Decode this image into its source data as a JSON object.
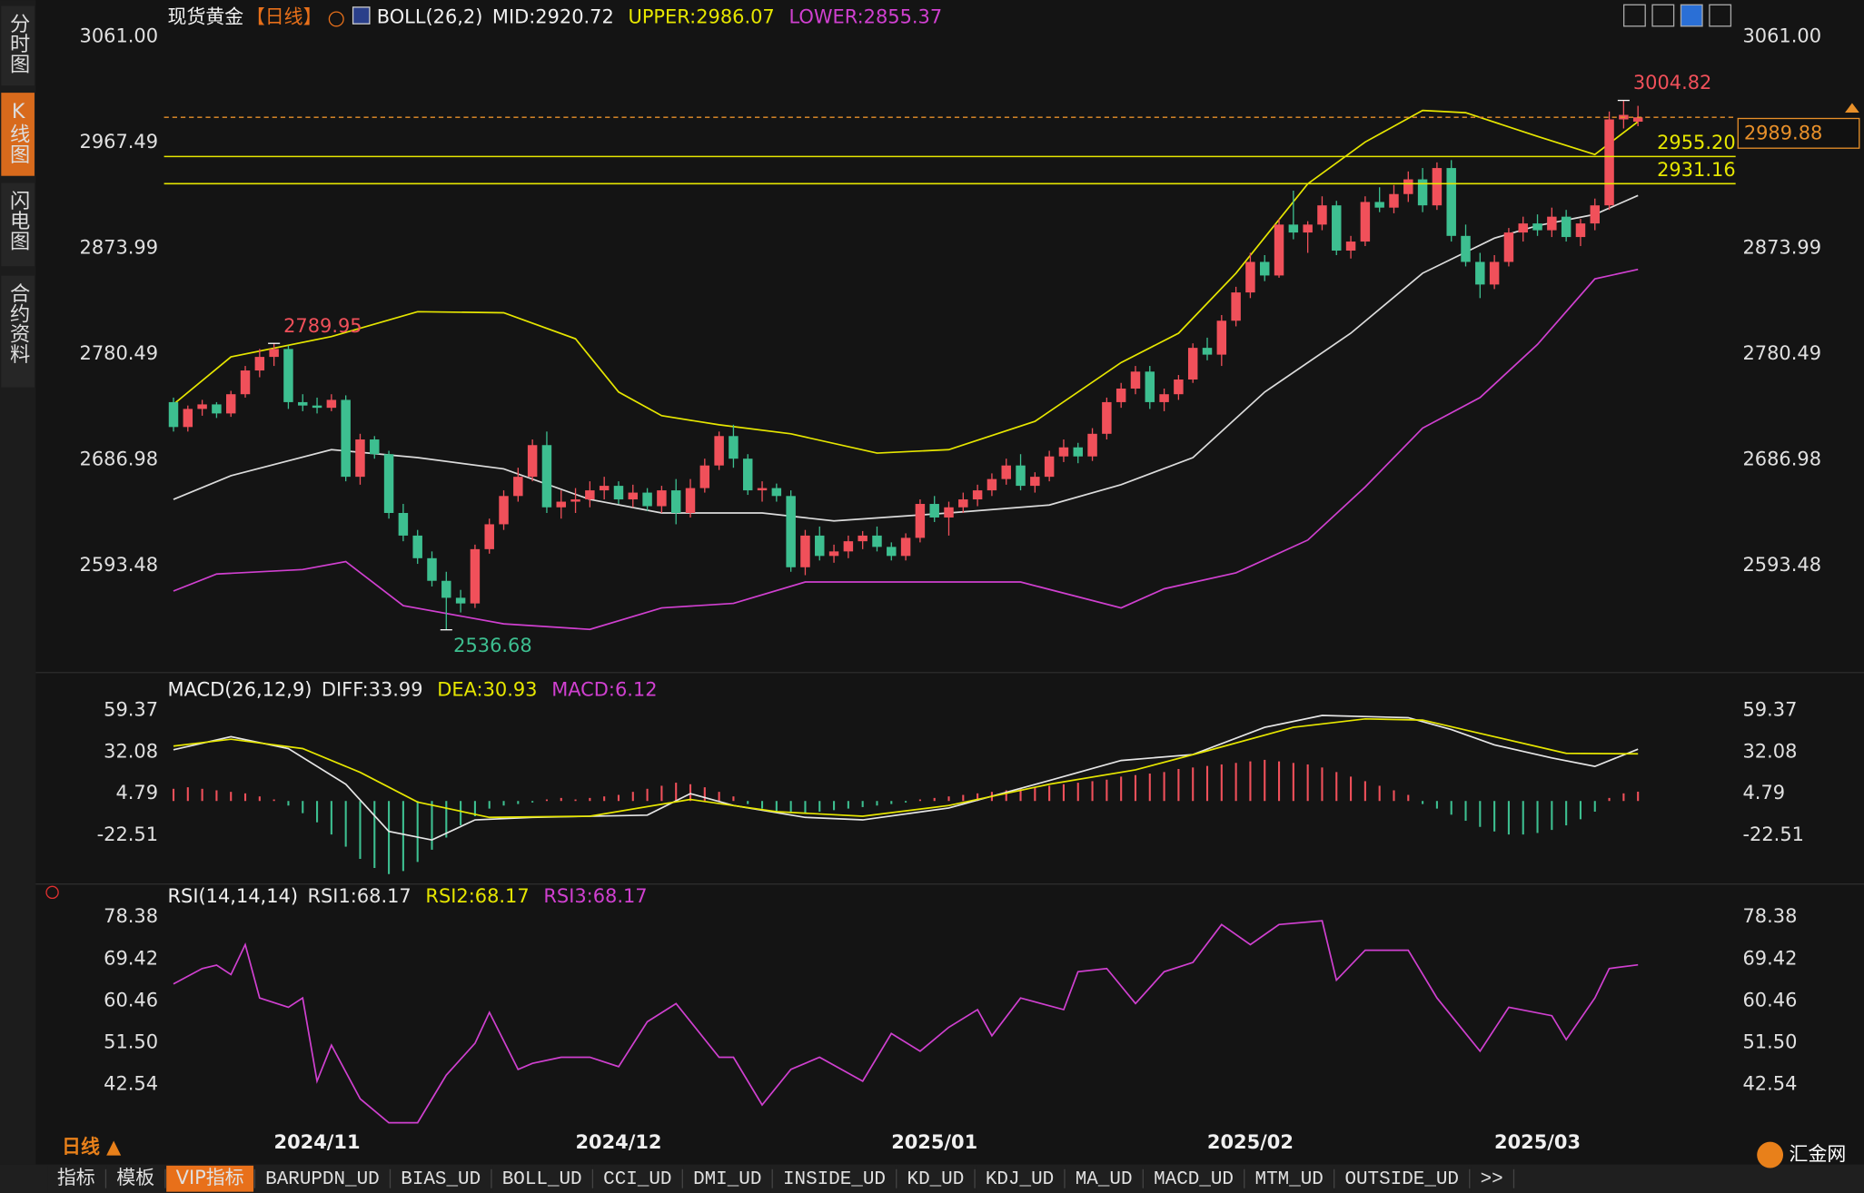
{
  "header": {
    "symbol": "现货黄金",
    "period": "【日线】"
  },
  "sidebar": [
    "分时图",
    "K线图",
    "闪电图",
    "合约资料"
  ],
  "period_selector": "日线 ▲",
  "bottom_tabs": [
    "指标",
    "模板",
    "VIP指标",
    "BARUPDN_UD",
    "BIAS_UD",
    "BOLL_UD",
    "CCI_UD",
    "DMI_UD",
    "INSIDE_UD",
    "KD_UD",
    "KDJ_UD",
    "MA_UD",
    "MACD_UD",
    "MTM_UD",
    "OUTSIDE_UD",
    ">>"
  ],
  "logo": "汇金网",
  "chart_data": [
    {
      "type": "candlestick",
      "indicator": "BOLL(26,2)",
      "up_color": "#f0505a",
      "down_color": "#3dbf90",
      "grid": false,
      "xlim": [
        -9.6,
        108.8
      ],
      "xticks": [
        {
          "value": 10,
          "label": "2024/11"
        },
        {
          "value": 31,
          "label": "2024/12"
        },
        {
          "value": 53,
          "label": "2025/01"
        },
        {
          "value": 75,
          "label": "2025/02"
        },
        {
          "value": 95,
          "label": "2025/03"
        }
      ],
      "ylim": [
        2505.2,
        3088.3
      ],
      "yticks": [
        2593.48,
        2686.98,
        2780.49,
        2873.99,
        2967.49,
        {
          "value": 3061,
          "label": "3061.00"
        }
      ],
      "candles": [
        [
          2738,
          2742,
          2712,
          2716
        ],
        [
          2716,
          2735,
          2712,
          2732
        ],
        [
          2732,
          2740,
          2726,
          2736
        ],
        [
          2736,
          2738,
          2724,
          2728
        ],
        [
          2728,
          2748,
          2725,
          2745
        ],
        [
          2745,
          2770,
          2742,
          2766
        ],
        [
          2766,
          2785,
          2760,
          2778
        ],
        [
          2778,
          2789.95,
          2770,
          2785
        ],
        [
          2785,
          2788,
          2732,
          2738
        ],
        [
          2738,
          2745,
          2730,
          2735
        ],
        [
          2735,
          2742,
          2728,
          2733
        ],
        [
          2733,
          2745,
          2730,
          2740
        ],
        [
          2740,
          2744,
          2668,
          2672
        ],
        [
          2672,
          2710,
          2665,
          2705
        ],
        [
          2705,
          2708,
          2688,
          2692
        ],
        [
          2692,
          2695,
          2635,
          2640
        ],
        [
          2640,
          2648,
          2615,
          2620
        ],
        [
          2620,
          2625,
          2595,
          2600
        ],
        [
          2600,
          2606,
          2575,
          2580
        ],
        [
          2580,
          2588,
          2536.68,
          2565
        ],
        [
          2565,
          2572,
          2552,
          2560
        ],
        [
          2560,
          2612,
          2556,
          2608
        ],
        [
          2608,
          2635,
          2604,
          2630
        ],
        [
          2630,
          2660,
          2625,
          2655
        ],
        [
          2655,
          2680,
          2650,
          2672
        ],
        [
          2672,
          2705,
          2668,
          2700
        ],
        [
          2700,
          2712,
          2640,
          2645
        ],
        [
          2645,
          2660,
          2635,
          2650
        ],
        [
          2650,
          2662,
          2640,
          2652
        ],
        [
          2652,
          2668,
          2645,
          2660
        ],
        [
          2660,
          2672,
          2652,
          2664
        ],
        [
          2664,
          2668,
          2648,
          2652
        ],
        [
          2652,
          2665,
          2645,
          2658
        ],
        [
          2658,
          2662,
          2642,
          2646
        ],
        [
          2646,
          2664,
          2640,
          2660
        ],
        [
          2660,
          2670,
          2630,
          2640
        ],
        [
          2640,
          2670,
          2636,
          2662
        ],
        [
          2662,
          2688,
          2658,
          2682
        ],
        [
          2682,
          2712,
          2678,
          2708
        ],
        [
          2708,
          2718,
          2680,
          2688
        ],
        [
          2688,
          2692,
          2656,
          2660
        ],
        [
          2660,
          2668,
          2650,
          2662
        ],
        [
          2662,
          2666,
          2650,
          2655
        ],
        [
          2655,
          2660,
          2588,
          2592
        ],
        [
          2592,
          2625,
          2585,
          2620
        ],
        [
          2620,
          2628,
          2598,
          2602
        ],
        [
          2602,
          2612,
          2596,
          2606
        ],
        [
          2606,
          2620,
          2600,
          2615
        ],
        [
          2615,
          2624,
          2608,
          2620
        ],
        [
          2620,
          2628,
          2606,
          2610
        ],
        [
          2610,
          2614,
          2598,
          2602
        ],
        [
          2602,
          2622,
          2598,
          2618
        ],
        [
          2618,
          2652,
          2614,
          2648
        ],
        [
          2648,
          2655,
          2632,
          2636
        ],
        [
          2636,
          2650,
          2620,
          2645
        ],
        [
          2645,
          2658,
          2640,
          2652
        ],
        [
          2652,
          2665,
          2646,
          2660
        ],
        [
          2660,
          2675,
          2655,
          2670
        ],
        [
          2670,
          2688,
          2665,
          2682
        ],
        [
          2682,
          2692,
          2660,
          2664
        ],
        [
          2664,
          2676,
          2658,
          2672
        ],
        [
          2672,
          2695,
          2668,
          2690
        ],
        [
          2690,
          2705,
          2685,
          2698
        ],
        [
          2698,
          2702,
          2684,
          2690
        ],
        [
          2690,
          2715,
          2686,
          2710
        ],
        [
          2710,
          2742,
          2705,
          2738
        ],
        [
          2738,
          2755,
          2733,
          2750
        ],
        [
          2750,
          2770,
          2745,
          2765
        ],
        [
          2765,
          2770,
          2732,
          2738
        ],
        [
          2738,
          2750,
          2730,
          2745
        ],
        [
          2745,
          2762,
          2740,
          2758
        ],
        [
          2758,
          2790,
          2755,
          2786
        ],
        [
          2786,
          2795,
          2775,
          2780
        ],
        [
          2780,
          2815,
          2770,
          2810
        ],
        [
          2810,
          2840,
          2805,
          2835
        ],
        [
          2835,
          2870,
          2830,
          2862
        ],
        [
          2862,
          2868,
          2845,
          2850
        ],
        [
          2850,
          2900,
          2848,
          2895
        ],
        [
          2895,
          2925,
          2882,
          2888
        ],
        [
          2888,
          2898,
          2870,
          2895
        ],
        [
          2895,
          2920,
          2890,
          2912
        ],
        [
          2912,
          2916,
          2868,
          2872
        ],
        [
          2872,
          2885,
          2865,
          2880
        ],
        [
          2880,
          2920,
          2876,
          2915
        ],
        [
          2915,
          2928,
          2906,
          2910
        ],
        [
          2910,
          2930,
          2905,
          2922
        ],
        [
          2922,
          2942,
          2915,
          2935
        ],
        [
          2935,
          2945,
          2906,
          2912
        ],
        [
          2912,
          2950,
          2908,
          2945
        ],
        [
          2945,
          2952,
          2880,
          2885
        ],
        [
          2885,
          2895,
          2858,
          2862
        ],
        [
          2862,
          2870,
          2830,
          2842
        ],
        [
          2842,
          2868,
          2838,
          2862
        ],
        [
          2862,
          2892,
          2858,
          2888
        ],
        [
          2888,
          2902,
          2880,
          2896
        ],
        [
          2896,
          2904,
          2885,
          2890
        ],
        [
          2890,
          2910,
          2884,
          2902
        ],
        [
          2902,
          2908,
          2880,
          2884
        ],
        [
          2884,
          2900,
          2876,
          2896
        ],
        [
          2896,
          2918,
          2890,
          2912
        ],
        [
          2912,
          2995,
          2908,
          2988
        ],
        [
          2988,
          3004.82,
          2980,
          2992
        ],
        [
          2986,
          3000,
          2982,
          2989.88
        ]
      ],
      "series": [
        {
          "name": "MID:2920.72",
          "color": "#dcdcdc",
          "x": [
            0,
            4,
            11,
            17,
            23,
            29,
            34,
            41,
            46,
            54,
            61,
            66,
            71,
            76,
            82,
            87,
            92,
            95,
            99,
            102
          ],
          "values": [
            2652,
            2673,
            2696,
            2689,
            2679,
            2652,
            2640,
            2640,
            2633,
            2640,
            2647,
            2665,
            2689,
            2747,
            2799,
            2852,
            2883,
            2894,
            2904,
            2920.72
          ]
        },
        {
          "name": "UPPER:2986.07",
          "color": "#e6e600",
          "x": [
            0,
            4,
            11,
            17,
            23,
            28,
            31,
            34,
            38,
            43,
            49,
            54,
            60,
            66,
            70,
            74,
            79,
            83,
            87,
            90,
            95,
            99,
            102
          ],
          "values": [
            2736,
            2778,
            2796,
            2818,
            2817,
            2794,
            2747,
            2726,
            2718,
            2710,
            2693,
            2696,
            2721,
            2773,
            2799,
            2852,
            2931,
            2968,
            2996,
            2994,
            2973,
            2957,
            2986.07
          ]
        },
        {
          "name": "LOWER:2855.37",
          "color": "#d040d0",
          "x": [
            0,
            3,
            9,
            12,
            16,
            23,
            29,
            34,
            39,
            44,
            50,
            59,
            66,
            69,
            74,
            79,
            83,
            87,
            91,
            95,
            99,
            102
          ],
          "values": [
            2571,
            2586,
            2590,
            2597,
            2558,
            2542,
            2537,
            2556,
            2560,
            2579,
            2579,
            2579,
            2556,
            2573,
            2587,
            2616,
            2663,
            2715,
            2742,
            2789,
            2847,
            2855.37
          ]
        }
      ],
      "price_lines": [
        {
          "value": 2955.2,
          "label": "2955.20"
        },
        {
          "value": 2931.16,
          "label": "2931.16"
        }
      ],
      "price_line_color": "#e6e600",
      "last_price": 2989.88,
      "last_price_color": "#e8902a",
      "high_labels": [
        3004.82,
        2789.95
      ],
      "low_labels": [
        2536.68
      ]
    },
    {
      "type": "macd",
      "title": "MACD(26,12,9)",
      "ylim": [
        -51.4,
        77.3
      ],
      "yticks": [
        -22.51,
        4.79,
        32.08,
        59.37
      ],
      "series": [
        {
          "name": "DIFF:33.99",
          "color": "#e6e6e6",
          "x": [
            0,
            4,
            8,
            12,
            15,
            18,
            21,
            25,
            33,
            36,
            39,
            44,
            48,
            54,
            61,
            66,
            71,
            76,
            80,
            86,
            89,
            92,
            96,
            99,
            102
          ],
          "values": [
            33.6,
            42.2,
            34.4,
            11,
            -20,
            -25.6,
            -12.4,
            -10.8,
            -9.3,
            4.8,
            -3,
            -10.8,
            -12.4,
            -4.6,
            13.4,
            26.6,
            30.5,
            48.4,
            56.2,
            54.7,
            46.9,
            36.8,
            28.2,
            22.7,
            33.99
          ]
        },
        {
          "name": "DEA:30.93",
          "color": "#e6e600",
          "x": [
            0,
            4,
            9,
            13,
            17,
            22,
            29,
            36,
            42,
            48,
            54,
            61,
            67,
            72,
            78,
            83,
            87,
            92,
            97,
            102
          ],
          "values": [
            36,
            40.6,
            34.4,
            18.8,
            -0.7,
            -10.8,
            -10,
            1,
            -7,
            -10,
            -3,
            11,
            20.4,
            32.9,
            48.4,
            53.9,
            53.1,
            42.2,
            31.3,
            30.93
          ]
        }
      ],
      "histogram": {
        "name": "MACD:6.12",
        "color": "#d040d0",
        "up_color": "#f0505a",
        "down_color": "#3dbf90",
        "values": [
          8,
          9,
          8,
          7,
          6,
          5,
          3,
          1,
          -3,
          -8,
          -14,
          -22,
          -30,
          -38,
          -44,
          -48,
          -46,
          -40,
          -32,
          -24,
          -16,
          -10,
          -5,
          -3,
          -2,
          -1,
          1,
          2,
          1,
          2,
          3,
          4,
          6,
          8,
          10,
          12,
          11,
          9,
          6,
          3,
          -2,
          -5,
          -7,
          -8,
          -8,
          -7,
          -6,
          -5,
          -4,
          -3,
          -2,
          -1,
          1,
          2,
          3,
          4,
          5,
          6,
          7,
          8,
          9,
          10,
          11,
          12,
          13,
          14,
          16,
          17,
          18,
          19,
          21,
          22,
          23,
          24,
          25,
          26,
          27,
          26,
          25,
          24,
          22,
          19,
          16,
          13,
          10,
          7,
          4,
          -2,
          -5,
          -9,
          -13,
          -17,
          -20,
          -22,
          -22,
          -21,
          -19,
          -16,
          -12,
          -7,
          2,
          5,
          6.12
        ]
      }
    },
    {
      "type": "line",
      "title": "RSI(14,14,14)",
      "ylim": [
        33.1,
        81.4
      ],
      "yticks": [
        42.54,
        {
          "value": 51.5,
          "label": "51.50"
        },
        60.46,
        69.42,
        78.38
      ],
      "legend_texts": [
        {
          "text": "RSI1:68.17",
          "color": "#e6e6e6"
        },
        {
          "text": "RSI2:68.17",
          "color": "#e6e600"
        }
      ],
      "series": [
        {
          "name": "RSI3:68.17",
          "color": "#d040d0",
          "x": [
            0,
            2,
            3,
            4,
            5,
            6,
            8,
            9,
            10,
            11,
            13,
            15,
            17,
            19,
            21,
            22,
            24,
            25,
            27,
            29,
            31,
            33,
            35,
            38,
            39,
            41,
            43,
            45,
            48,
            50,
            52,
            54,
            56,
            57,
            59,
            62,
            63,
            65,
            67,
            69,
            71,
            73,
            75,
            77,
            80,
            81,
            83,
            86,
            88,
            91,
            93,
            96,
            97,
            99,
            100,
            102
          ],
          "values": [
            64.1,
            67.4,
            68.1,
            66.1,
            72.5,
            61.1,
            59.1,
            61.1,
            43.3,
            51,
            39.5,
            34.4,
            34.4,
            44.6,
            51.4,
            58,
            45.8,
            47.1,
            48.4,
            48.4,
            46.4,
            56,
            59.9,
            48.4,
            48.4,
            38.2,
            45.8,
            48.4,
            43.3,
            53.5,
            49.7,
            54.8,
            58.6,
            53,
            61.1,
            58.6,
            66.7,
            67.4,
            59.9,
            66.7,
            68.7,
            76.8,
            72.5,
            76.8,
            77.6,
            64.9,
            71.3,
            71.3,
            61.1,
            49.7,
            59.1,
            57.3,
            52.2,
            61.1,
            67.4,
            68.17
          ]
        }
      ]
    }
  ]
}
